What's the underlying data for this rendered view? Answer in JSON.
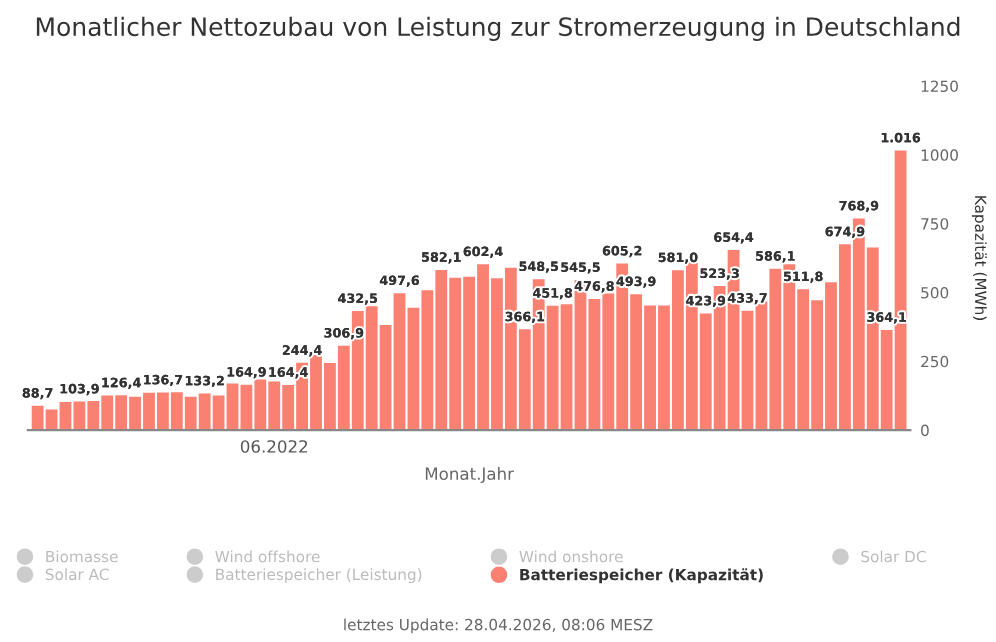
{
  "chart_data": {
    "type": "bar",
    "title": "Monatlicher Nettozubau von Leistung zur Stromerzeugung in Deutschland",
    "xlabel": "Monat.Jahr",
    "ylabel": "Kapazität (MWh)",
    "categories": [
      null,
      null,
      null,
      null,
      null,
      null,
      null,
      null,
      null,
      null,
      null,
      null,
      null,
      null,
      null,
      null,
      null,
      "06.2022",
      null,
      null,
      null,
      null,
      null,
      null,
      null,
      null,
      null,
      null,
      null,
      null,
      null,
      null,
      null,
      null,
      null,
      null,
      null,
      null,
      null,
      null,
      null,
      null,
      null,
      null,
      null,
      null,
      null,
      null,
      null,
      null,
      null,
      null,
      null,
      null,
      null,
      null,
      null,
      null,
      null,
      null,
      null,
      null,
      null
    ],
    "series": [
      {
        "name": "Biomasse",
        "color": "#cccccc",
        "values": [
          null,
          null,
          null,
          null,
          null,
          null,
          null,
          null,
          null,
          null,
          null,
          null,
          null,
          null,
          null,
          null,
          null,
          null,
          null,
          null,
          null,
          null,
          null,
          null,
          null,
          null,
          null,
          null,
          null,
          null,
          null,
          null,
          null,
          null,
          null,
          null,
          null,
          null,
          null,
          null,
          null,
          null,
          null,
          null,
          null,
          null,
          null,
          null,
          null,
          null,
          null,
          null,
          null,
          null,
          null,
          null,
          null,
          null,
          null,
          null,
          null,
          null,
          null
        ]
      },
      {
        "name": "Solar AC",
        "color": "#cccccc",
        "values": [
          null,
          null,
          null,
          null,
          null,
          null,
          null,
          null,
          null,
          null,
          null,
          null,
          null,
          null,
          null,
          null,
          null,
          null,
          null,
          null,
          null,
          null,
          null,
          null,
          null,
          null,
          null,
          null,
          null,
          null,
          null,
          null,
          null,
          null,
          null,
          null,
          null,
          null,
          null,
          null,
          null,
          null,
          null,
          null,
          null,
          null,
          null,
          null,
          null,
          null,
          null,
          null,
          null,
          null,
          null,
          null,
          null,
          null,
          null,
          null,
          null,
          null,
          null
        ]
      },
      {
        "name": "Wind offshore",
        "color": "#cccccc",
        "values": [
          null,
          null,
          null,
          null,
          null,
          null,
          null,
          null,
          null,
          null,
          null,
          null,
          null,
          null,
          null,
          null,
          null,
          null,
          null,
          null,
          null,
          null,
          null,
          null,
          null,
          null,
          null,
          null,
          null,
          null,
          null,
          null,
          null,
          null,
          null,
          null,
          null,
          null,
          null,
          null,
          null,
          null,
          null,
          null,
          null,
          null,
          null,
          null,
          null,
          null,
          null,
          null,
          null,
          null,
          null,
          null,
          null,
          null,
          null,
          null,
          null,
          null,
          null
        ]
      },
      {
        "name": "Batteriespeicher (Leistung)",
        "color": "#cccccc",
        "values": [
          null,
          null,
          null,
          null,
          null,
          null,
          null,
          null,
          null,
          null,
          null,
          null,
          null,
          null,
          null,
          null,
          null,
          null,
          null,
          null,
          null,
          null,
          null,
          null,
          null,
          null,
          null,
          null,
          null,
          null,
          null,
          null,
          null,
          null,
          null,
          null,
          null,
          null,
          null,
          null,
          null,
          null,
          null,
          null,
          null,
          null,
          null,
          null,
          null,
          null,
          null,
          null,
          null,
          null,
          null,
          null,
          null,
          null,
          null,
          null,
          null,
          null,
          null
        ]
      },
      {
        "name": "Wind onshore",
        "color": "#cccccc",
        "values": [
          null,
          null,
          null,
          null,
          null,
          null,
          null,
          null,
          null,
          null,
          null,
          null,
          null,
          null,
          null,
          null,
          null,
          null,
          null,
          null,
          null,
          null,
          null,
          null,
          null,
          null,
          null,
          null,
          null,
          null,
          null,
          null,
          null,
          null,
          null,
          null,
          null,
          null,
          null,
          null,
          null,
          null,
          null,
          null,
          null,
          null,
          null,
          null,
          null,
          null,
          null,
          null,
          null,
          null,
          null,
          null,
          null,
          null,
          null,
          null,
          null,
          null,
          null
        ]
      },
      {
        "name": "Batteriespeicher (Kapazität)",
        "color": "#fa8072",
        "values": [
          88.7,
          75,
          102,
          103.9,
          106,
          126,
          126.4,
          121,
          136,
          136.7,
          138,
          121,
          133.2,
          126,
          169,
          164.9,
          184,
          177,
          164.4,
          244.4,
          276,
          244,
          306.9,
          432.5,
          450,
          382,
          497.6,
          445,
          508,
          582.1,
          554,
          557,
          602.4,
          552,
          590,
          366.1,
          548.5,
          451.8,
          457,
          545.5,
          476.8,
          496,
          605.2,
          493.9,
          453,
          453,
          581.0,
          610,
          423.9,
          523.3,
          654.4,
          433.7,
          467,
          586.1,
          603,
          511.8,
          472,
          537,
          674.9,
          768.9,
          663,
          364.1,
          1016
        ],
        "value_labels": [
          "88,7",
          null,
          null,
          "103,9",
          null,
          null,
          "126,4",
          null,
          null,
          "136,7",
          null,
          null,
          "133,2",
          null,
          null,
          "164,9",
          null,
          null,
          "164,4",
          "244,4",
          null,
          null,
          "306,9",
          "432,5",
          null,
          null,
          "497,6",
          null,
          null,
          "582,1",
          null,
          null,
          "602,4",
          null,
          null,
          "366,1",
          "548,5",
          "451,8",
          null,
          "545,5",
          "476,8",
          null,
          "605,2",
          "493,9",
          null,
          null,
          "581,0",
          null,
          "423,9",
          "523,3",
          "654,4",
          "433,7",
          null,
          "586,1",
          null,
          "511,8",
          null,
          null,
          "674,9",
          "768,9",
          null,
          "364,1",
          "1.016"
        ]
      },
      {
        "name": "Solar DC",
        "color": "#cccccc",
        "values": [
          null,
          null,
          null,
          null,
          null,
          null,
          null,
          null,
          null,
          null,
          null,
          null,
          null,
          null,
          null,
          null,
          null,
          null,
          null,
          null,
          null,
          null,
          null,
          null,
          null,
          null,
          null,
          null,
          null,
          null,
          null,
          null,
          null,
          null,
          null,
          null,
          null,
          null,
          null,
          null,
          null,
          null,
          null,
          null,
          null,
          null,
          null,
          null,
          null,
          null,
          null,
          null,
          null,
          null,
          null,
          null,
          null,
          null,
          null,
          null,
          null,
          null,
          null
        ]
      }
    ],
    "ylim": [
      0,
      1250
    ],
    "yticks": [
      0,
      250,
      500,
      750,
      1000,
      1250
    ],
    "grid": false,
    "legend": "bottom",
    "annotations": [
      "letztes Update: 28.04.2026, 08:06 MESZ"
    ]
  }
}
